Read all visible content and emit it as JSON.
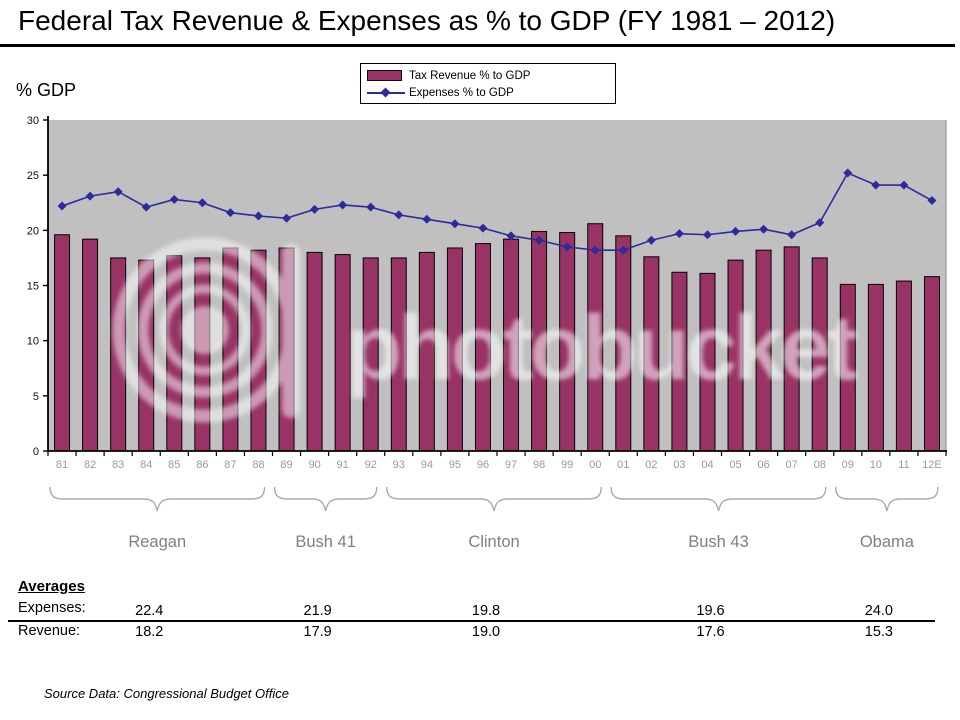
{
  "title": "Federal Tax Revenue & Expenses as % to GDP (FY 1981 – 2012)",
  "y_axis_title": "% GDP",
  "legend": {
    "revenue_label": "Tax Revenue % to GDP",
    "expenses_label": "Expenses % to GDP"
  },
  "colors": {
    "bar": "#993366",
    "bar_border": "#000000",
    "line": "#2B2B9E",
    "plot_bg": "#C0C0C0",
    "axis": "#000000",
    "x_tick_label": "#9A9A9A",
    "era_text": "#808080",
    "brace": "#ABABAB"
  },
  "chart_data": {
    "type": "bar",
    "title": "Federal Tax Revenue & Expenses as % to GDP (FY 1981 – 2012)",
    "xlabel": "",
    "ylabel": "% GDP",
    "ylim": [
      0,
      30
    ],
    "yticks": [
      0,
      5,
      10,
      15,
      20,
      25,
      30
    ],
    "grid": false,
    "legend_position": "top-center",
    "categories": [
      "81",
      "82",
      "83",
      "84",
      "85",
      "86",
      "87",
      "88",
      "89",
      "90",
      "91",
      "92",
      "93",
      "94",
      "95",
      "96",
      "97",
      "98",
      "99",
      "00",
      "01",
      "02",
      "03",
      "04",
      "05",
      "06",
      "07",
      "08",
      "09",
      "10",
      "11",
      "12E"
    ],
    "series": [
      {
        "name": "Tax Revenue % to GDP",
        "type": "bar",
        "values": [
          19.6,
          19.2,
          17.5,
          17.3,
          17.7,
          17.5,
          18.4,
          18.2,
          18.4,
          18.0,
          17.8,
          17.5,
          17.5,
          18.0,
          18.4,
          18.8,
          19.2,
          19.9,
          19.8,
          20.6,
          19.5,
          17.6,
          16.2,
          16.1,
          17.3,
          18.2,
          18.5,
          17.5,
          15.1,
          15.1,
          15.4,
          15.8
        ]
      },
      {
        "name": "Expenses % to GDP",
        "type": "line",
        "values": [
          22.2,
          23.1,
          23.5,
          22.1,
          22.8,
          22.5,
          21.6,
          21.3,
          21.1,
          21.9,
          22.3,
          22.1,
          21.4,
          21.0,
          20.6,
          20.2,
          19.5,
          19.1,
          18.5,
          18.2,
          18.2,
          19.1,
          19.7,
          19.6,
          19.9,
          20.1,
          19.6,
          20.7,
          25.2,
          24.1,
          24.1,
          22.7
        ]
      }
    ]
  },
  "eras": [
    {
      "label": "Reagan",
      "start_index": 0,
      "end_index": 7,
      "expenses_avg": "22.4",
      "revenue_avg": "18.2"
    },
    {
      "label": "Bush 41",
      "start_index": 8,
      "end_index": 11,
      "expenses_avg": "21.9",
      "revenue_avg": "17.9"
    },
    {
      "label": "Clinton",
      "start_index": 12,
      "end_index": 19,
      "expenses_avg": "19.8",
      "revenue_avg": "19.0"
    },
    {
      "label": "Bush 43",
      "start_index": 20,
      "end_index": 27,
      "expenses_avg": "19.6",
      "revenue_avg": "17.6"
    },
    {
      "label": "Obama",
      "start_index": 28,
      "end_index": 31,
      "expenses_avg": "24.0",
      "revenue_avg": "15.3"
    }
  ],
  "averages": {
    "heading": "Averages",
    "expenses_label": "Expenses:",
    "revenue_label": "Revenue:"
  },
  "source": "Source Data:  Congressional Budget Office",
  "watermark": {
    "text": "photobucket"
  }
}
